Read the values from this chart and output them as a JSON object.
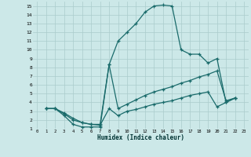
{
  "xlabel": "Humidex (Indice chaleur)",
  "xlim": [
    -0.5,
    23.5
  ],
  "ylim": [
    1,
    15.5
  ],
  "xticks": [
    0,
    1,
    2,
    3,
    4,
    5,
    6,
    7,
    8,
    9,
    10,
    11,
    12,
    13,
    14,
    15,
    16,
    17,
    18,
    19,
    20,
    21,
    22,
    23
  ],
  "yticks": [
    1,
    2,
    3,
    4,
    5,
    6,
    7,
    8,
    9,
    10,
    11,
    12,
    13,
    14,
    15
  ],
  "bg_color": "#cce8e8",
  "grid_color": "#aacccc",
  "line_color": "#1a6b6b",
  "curves": [
    {
      "x": [
        1,
        2,
        3,
        4,
        5,
        6,
        7,
        8,
        9,
        10,
        11,
        12,
        13,
        14,
        15,
        16,
        17,
        18,
        19,
        20,
        21,
        22
      ],
      "y": [
        3.3,
        3.3,
        2.5,
        1.5,
        1.2,
        1.2,
        1.2,
        8.3,
        11.0,
        12.0,
        13.0,
        14.3,
        15.0,
        15.1,
        15.0,
        10.0,
        9.5,
        9.5,
        8.5,
        9.0,
        4.0,
        4.5
      ]
    },
    {
      "x": [
        1,
        2,
        3,
        4,
        5,
        6,
        7,
        8,
        9,
        10,
        11,
        12,
        13,
        14,
        15,
        16,
        17,
        18,
        19,
        20,
        21,
        22
      ],
      "y": [
        3.3,
        3.3,
        2.7,
        2.0,
        1.7,
        1.5,
        1.5,
        8.3,
        3.3,
        3.8,
        4.3,
        4.8,
        5.2,
        5.5,
        5.8,
        6.2,
        6.5,
        6.9,
        7.2,
        7.6,
        4.2,
        4.5
      ]
    },
    {
      "x": [
        1,
        2,
        3,
        4,
        5,
        6,
        7,
        8,
        9,
        10,
        11,
        12,
        13,
        14,
        15,
        16,
        17,
        18,
        19,
        20,
        21,
        22
      ],
      "y": [
        3.3,
        3.3,
        2.8,
        2.2,
        1.7,
        1.5,
        1.4,
        3.3,
        2.5,
        3.0,
        3.2,
        3.5,
        3.8,
        4.0,
        4.2,
        4.5,
        4.8,
        5.0,
        5.2,
        3.5,
        4.0,
        4.5
      ]
    }
  ]
}
